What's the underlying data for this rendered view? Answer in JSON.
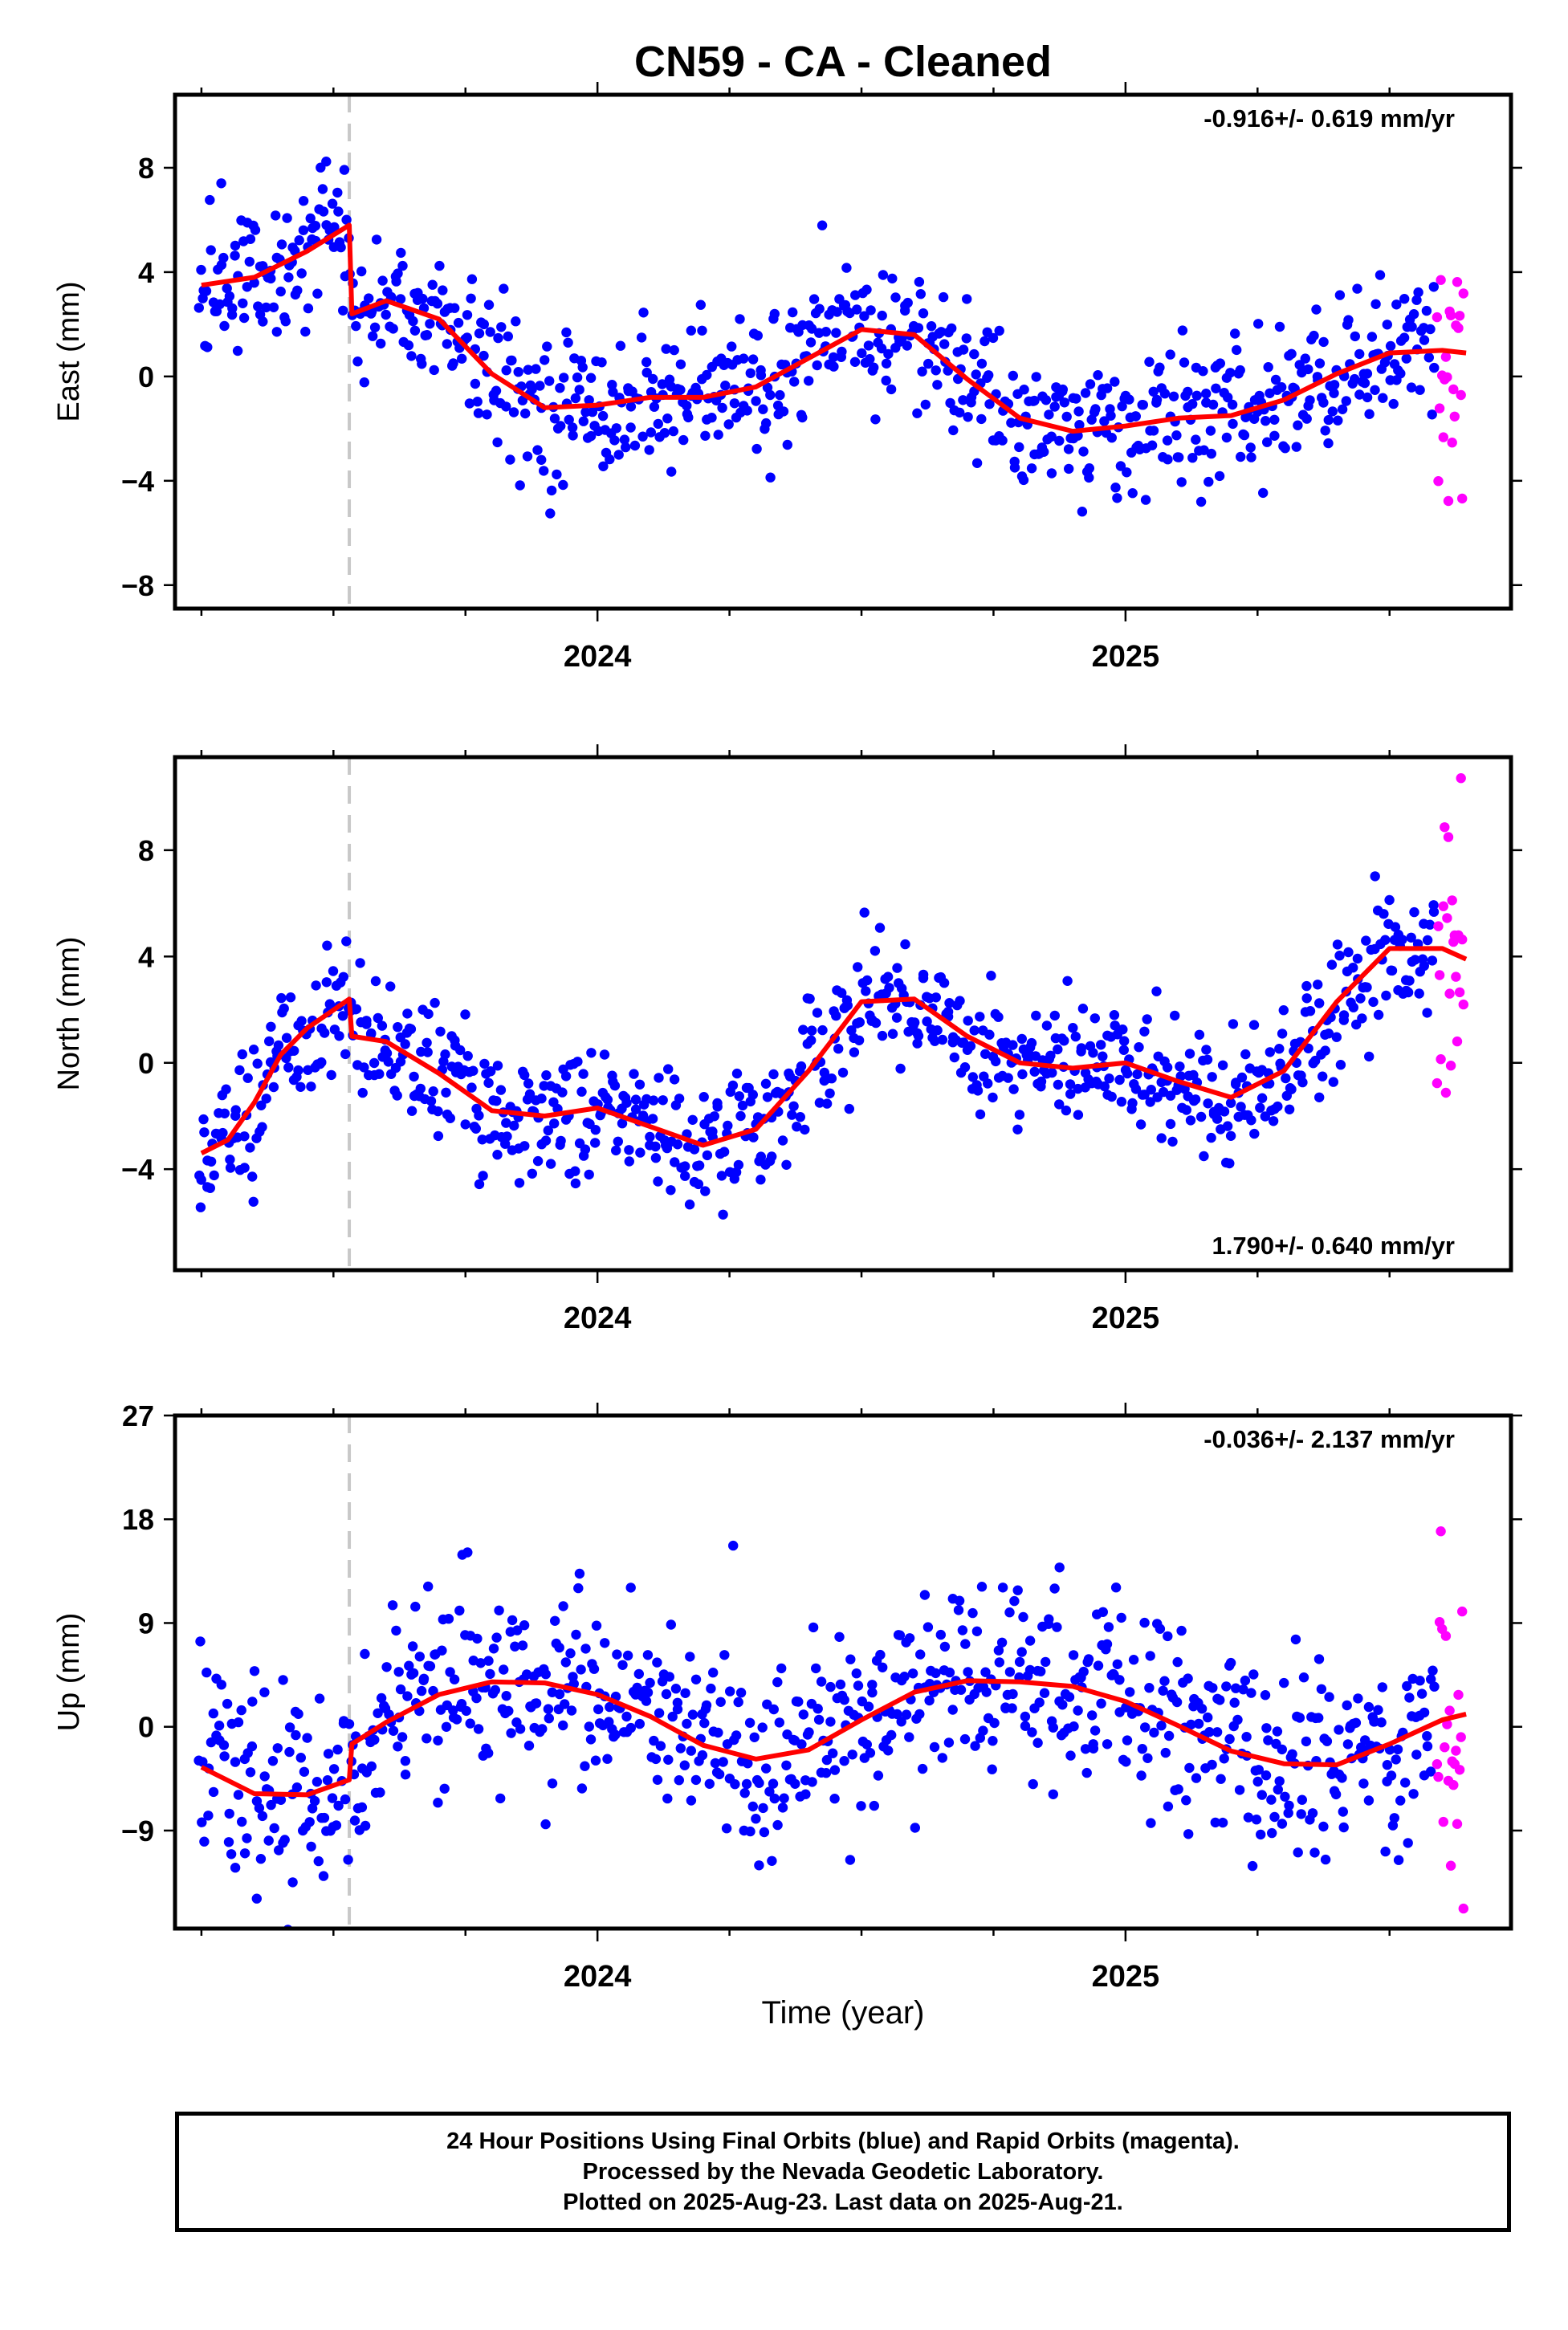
{
  "figure": {
    "title": "CN59  - CA - Cleaned",
    "xlabel": "Time (year)",
    "final_color": "#0000ff",
    "rapid_color": "#ff00ff",
    "model_color": "#ff0000",
    "step_line_color": "#c8c8c8",
    "caption": [
      "24 Hour Positions Using Final Orbits (blue) and Rapid Orbits (magenta).",
      "Processed by the Nevada Geodetic Laboratory.",
      "Plotted on 2025-Aug-23. Last data on 2025-Aug-21."
    ]
  },
  "chart_data": [
    {
      "type": "scatter",
      "component": "east",
      "ylabel": "East (mm)",
      "rate_label": "-0.916+/- 0.619 mm/yr",
      "rate_position": "top-right",
      "xlim": [
        2023.2,
        2025.73
      ],
      "ylim": [
        -8.9,
        10.8
      ],
      "yticks": [
        -8,
        -4,
        0,
        4,
        8
      ],
      "ytick_labels": [
        "−8",
        "−4",
        "0",
        "4",
        "8"
      ],
      "xticks": [
        2024,
        2025
      ],
      "xtick_labels": [
        "2024",
        "2025"
      ],
      "x_minor_ticks": [
        2023.25,
        2023.5,
        2023.75,
        2024.25,
        2024.5,
        2024.75,
        2025.25,
        2025.5
      ],
      "step_epoch": 2023.53,
      "final_data_range": [
        2023.245,
        2025.585
      ],
      "rapid_data_range": [
        2025.59,
        2025.64
      ],
      "model": {
        "x": [
          2023.25,
          2023.35,
          2023.45,
          2023.53,
          2023.535,
          2023.6,
          2023.7,
          2023.8,
          2023.9,
          2024.0,
          2024.1,
          2024.2,
          2024.3,
          2024.4,
          2024.5,
          2024.6,
          2024.7,
          2024.8,
          2024.9,
          2025.0,
          2025.1,
          2025.2,
          2025.3,
          2025.4,
          2025.5,
          2025.6,
          2025.645
        ],
        "y": [
          3.5,
          3.8,
          4.8,
          5.8,
          2.4,
          2.9,
          2.2,
          0.1,
          -1.2,
          -1.1,
          -0.8,
          -0.8,
          -0.4,
          0.7,
          1.8,
          1.6,
          -0.1,
          -1.6,
          -2.1,
          -1.9,
          -1.6,
          -1.5,
          -0.9,
          0.1,
          0.9,
          1.0,
          0.9
        ]
      }
    },
    {
      "type": "scatter",
      "component": "north",
      "ylabel": "North (mm)",
      "rate_label": "1.790+/- 0.640 mm/yr",
      "rate_position": "bottom-right",
      "xlim": [
        2023.2,
        2025.73
      ],
      "ylim": [
        -7.8,
        11.5
      ],
      "yticks": [
        -4,
        0,
        4,
        8
      ],
      "ytick_labels": [
        "−4",
        "0",
        "4",
        "8"
      ],
      "xticks": [
        2024,
        2025
      ],
      "xtick_labels": [
        "2024",
        "2025"
      ],
      "x_minor_ticks": [
        2023.25,
        2023.5,
        2023.75,
        2024.25,
        2024.5,
        2024.75,
        2025.25,
        2025.5
      ],
      "step_epoch": 2023.53,
      "final_data_range": [
        2023.245,
        2025.585
      ],
      "rapid_data_range": [
        2025.59,
        2025.64
      ],
      "model": {
        "x": [
          2023.25,
          2023.3,
          2023.35,
          2023.4,
          2023.45,
          2023.53,
          2023.535,
          2023.6,
          2023.7,
          2023.8,
          2023.9,
          2024.0,
          2024.1,
          2024.2,
          2024.3,
          2024.4,
          2024.5,
          2024.6,
          2024.7,
          2024.8,
          2024.9,
          2025.0,
          2025.1,
          2025.2,
          2025.3,
          2025.4,
          2025.5,
          2025.6,
          2025.645
        ],
        "y": [
          -3.4,
          -2.9,
          -1.5,
          0.3,
          1.3,
          2.4,
          1.0,
          0.8,
          -0.4,
          -1.8,
          -2.0,
          -1.7,
          -2.4,
          -3.1,
          -2.5,
          -0.3,
          2.3,
          2.4,
          1.0,
          0.0,
          -0.2,
          0.0,
          -0.7,
          -1.3,
          -0.3,
          2.3,
          4.3,
          4.3,
          3.9
        ]
      }
    },
    {
      "type": "scatter",
      "component": "up",
      "ylabel": "Up (mm)",
      "rate_label": "-0.036+/- 2.137 mm/yr",
      "rate_position": "top-right",
      "xlim": [
        2023.2,
        2025.73
      ],
      "ylim": [
        -17.5,
        27.0
      ],
      "yticks": [
        -9,
        0,
        9,
        18,
        27
      ],
      "ytick_labels": [
        "−9",
        "0",
        "9",
        "18",
        "27"
      ],
      "xticks": [
        2024,
        2025
      ],
      "xtick_labels": [
        "2024",
        "2025"
      ],
      "x_minor_ticks": [
        2023.25,
        2023.5,
        2023.75,
        2024.25,
        2024.5,
        2024.75,
        2025.25,
        2025.5
      ],
      "step_epoch": 2023.53,
      "final_data_range": [
        2023.245,
        2025.585
      ],
      "rapid_data_range": [
        2025.59,
        2025.64
      ],
      "model": {
        "x": [
          2023.25,
          2023.35,
          2023.45,
          2023.53,
          2023.535,
          2023.6,
          2023.7,
          2023.8,
          2023.9,
          2024.0,
          2024.1,
          2024.2,
          2024.3,
          2024.4,
          2024.5,
          2024.6,
          2024.7,
          2024.8,
          2024.9,
          2025.0,
          2025.1,
          2025.2,
          2025.3,
          2025.4,
          2025.5,
          2025.6,
          2025.645
        ],
        "y": [
          -3.5,
          -5.8,
          -5.9,
          -4.6,
          -1.5,
          0.4,
          2.8,
          3.9,
          3.8,
          2.8,
          0.9,
          -1.6,
          -2.8,
          -2.0,
          0.6,
          3.0,
          4.0,
          3.9,
          3.5,
          2.2,
          0.1,
          -2.1,
          -3.2,
          -3.3,
          -1.5,
          0.6,
          1.1
        ]
      }
    }
  ]
}
